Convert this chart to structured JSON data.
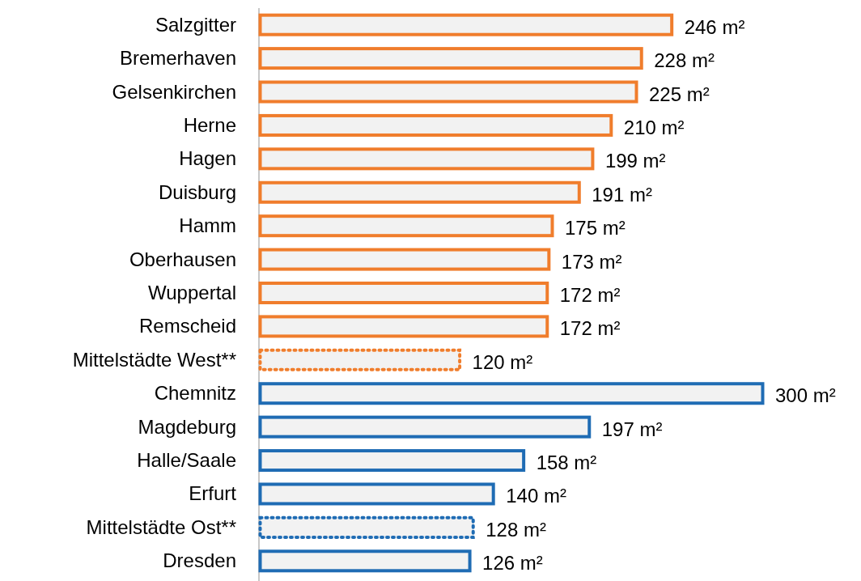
{
  "chart_data": {
    "type": "bar",
    "orientation": "horizontal",
    "categories": [
      "Salzgitter",
      "Bremerhaven",
      "Gelsenkirchen",
      "Herne",
      "Hagen",
      "Duisburg",
      "Hamm",
      "Oberhausen",
      "Wuppertal",
      "Remscheid",
      "Mittelstädte West**",
      "Chemnitz",
      "Magdeburg",
      "Halle/Saale",
      "Erfurt",
      "Mittelstädte Ost**",
      "Dresden"
    ],
    "series": [
      {
        "color": "#f07d2c",
        "line_style": "solid",
        "values": [
          246,
          228,
          225,
          210,
          199,
          191,
          175,
          173,
          172,
          172,
          null,
          null,
          null,
          null,
          null,
          null,
          null
        ],
        "value_labels": [
          "246 m²",
          "228 m²",
          "225 m²",
          "210 m²",
          "199 m²",
          "191 m²",
          "175 m²",
          "173 m²",
          "172 m²",
          "172 m²",
          null,
          null,
          null,
          null,
          null,
          null,
          null
        ]
      },
      {
        "color": "#f07d2c",
        "line_style": "dotted",
        "values": [
          null,
          null,
          null,
          null,
          null,
          null,
          null,
          null,
          null,
          null,
          120,
          null,
          null,
          null,
          null,
          null,
          null
        ],
        "value_labels": [
          null,
          null,
          null,
          null,
          null,
          null,
          null,
          null,
          null,
          null,
          "120 m²",
          null,
          null,
          null,
          null,
          null,
          null
        ]
      },
      {
        "color": "#1f6cb4",
        "line_style": "solid",
        "values": [
          null,
          null,
          null,
          null,
          null,
          null,
          null,
          null,
          null,
          null,
          null,
          300,
          197,
          158,
          140,
          null,
          126
        ],
        "value_labels": [
          null,
          null,
          null,
          null,
          null,
          null,
          null,
          null,
          null,
          null,
          null,
          "300 m²",
          "197 m²",
          "158 m²",
          "140 m²",
          null,
          "126 m²"
        ]
      },
      {
        "color": "#1f6cb4",
        "line_style": "dotted",
        "values": [
          null,
          null,
          null,
          null,
          null,
          null,
          null,
          null,
          null,
          null,
          null,
          null,
          null,
          null,
          null,
          128,
          null
        ],
        "value_labels": [
          null,
          null,
          null,
          null,
          null,
          null,
          null,
          null,
          null,
          null,
          null,
          null,
          null,
          null,
          null,
          "128 m²",
          null
        ]
      }
    ]
  }
}
